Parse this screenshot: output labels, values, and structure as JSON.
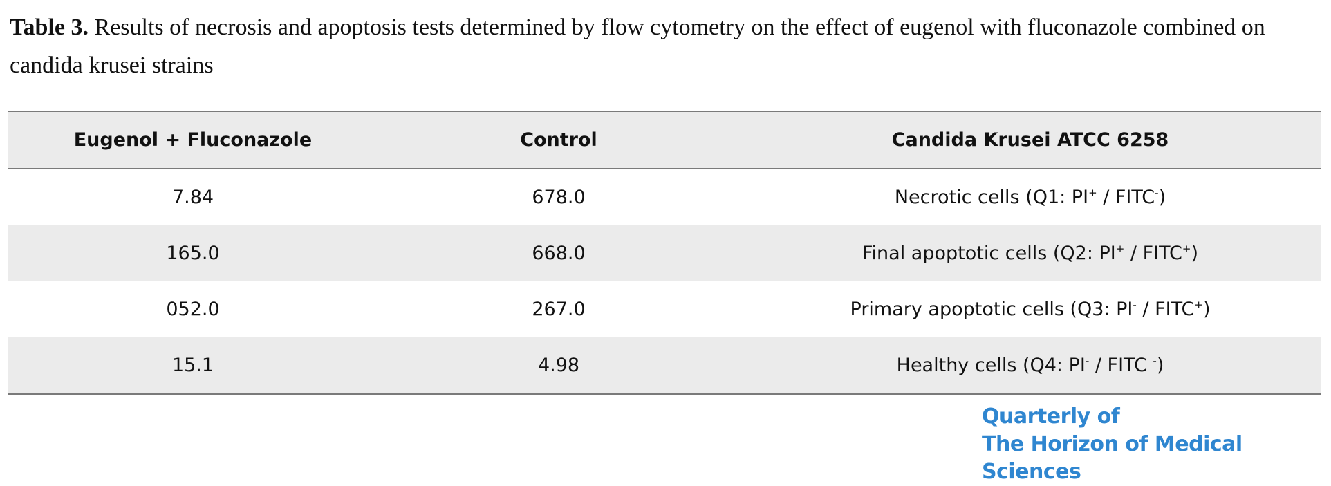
{
  "caption": {
    "label": "Table 3.",
    "text": "Results of necrosis and apoptosis tests determined by flow cytometry on the effect of eugenol with fluconazole combined on candida krusei strains"
  },
  "table": {
    "headers": [
      "Eugenol + Fluconazole",
      "Control",
      "Candida Krusei ATCC 6258"
    ],
    "rows": [
      {
        "eugenol_fluconazole": "7.84",
        "control": "678.0",
        "label_main": "Necrotic cells (Q1: PI",
        "label_sup1": "+",
        "label_mid": " / FITC",
        "label_sup2": "-",
        "label_end": ")"
      },
      {
        "eugenol_fluconazole": "165.0",
        "control": "668.0",
        "label_main": "Final apoptotic cells (Q2: PI",
        "label_sup1": "+",
        "label_mid": " / FITC",
        "label_sup2": "+",
        "label_end": ")"
      },
      {
        "eugenol_fluconazole": "052.0",
        "control": "267.0",
        "label_main": "Primary apoptotic cells (Q3: PI",
        "label_sup1": "-",
        "label_mid": " / FITC",
        "label_sup2": "+",
        "label_end": ")"
      },
      {
        "eugenol_fluconazole": "15.1",
        "control": "4.98",
        "label_main": "Healthy cells (Q4: PI",
        "label_sup1": "-",
        "label_mid": " / FITC ",
        "label_sup2": "-",
        "label_end": ")"
      }
    ]
  },
  "journal_logo": {
    "line1": "Quarterly of",
    "line2": "The Horizon of Medical Sciences"
  },
  "colors": {
    "logo_blue": "#2f86d0",
    "row_shade": "#ebebeb",
    "rule": "#7a7a7a"
  }
}
